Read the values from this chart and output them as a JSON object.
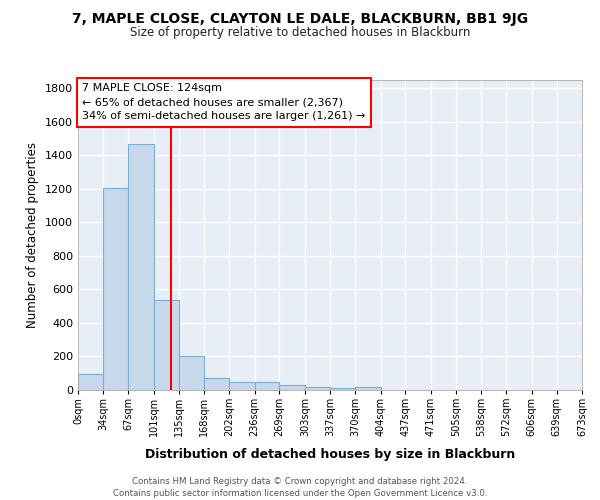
{
  "title": "7, MAPLE CLOSE, CLAYTON LE DALE, BLACKBURN, BB1 9JG",
  "subtitle": "Size of property relative to detached houses in Blackburn",
  "xlabel": "Distribution of detached houses by size in Blackburn",
  "ylabel": "Number of detached properties",
  "bar_color": "#c8d8eb",
  "bar_edge_color": "#7aafd4",
  "background_color": "#e8eef6",
  "grid_color": "white",
  "vline_x": 124,
  "vline_color": "red",
  "annotation_text": "7 MAPLE CLOSE: 124sqm\n← 65% of detached houses are smaller (2,367)\n34% of semi-detached houses are larger (1,261) →",
  "annotation_box_color": "white",
  "annotation_box_edge": "red",
  "bin_edges": [
    0,
    34,
    67,
    101,
    135,
    168,
    202,
    236,
    269,
    303,
    337,
    370,
    404,
    437,
    471,
    505,
    538,
    572,
    606,
    639,
    673
  ],
  "bin_counts": [
    93,
    1205,
    1467,
    537,
    205,
    73,
    48,
    46,
    30,
    20,
    9,
    17,
    0,
    0,
    0,
    0,
    0,
    0,
    0,
    0
  ],
  "ylim": [
    0,
    1850
  ],
  "yticks": [
    0,
    200,
    400,
    600,
    800,
    1000,
    1200,
    1400,
    1600,
    1800
  ],
  "footer_text": "Contains HM Land Registry data © Crown copyright and database right 2024.\nContains public sector information licensed under the Open Government Licence v3.0.",
  "tick_labels": [
    "0sqm",
    "34sqm",
    "67sqm",
    "101sqm",
    "135sqm",
    "168sqm",
    "202sqm",
    "236sqm",
    "269sqm",
    "303sqm",
    "337sqm",
    "370sqm",
    "404sqm",
    "437sqm",
    "471sqm",
    "505sqm",
    "538sqm",
    "572sqm",
    "606sqm",
    "639sqm",
    "673sqm"
  ]
}
